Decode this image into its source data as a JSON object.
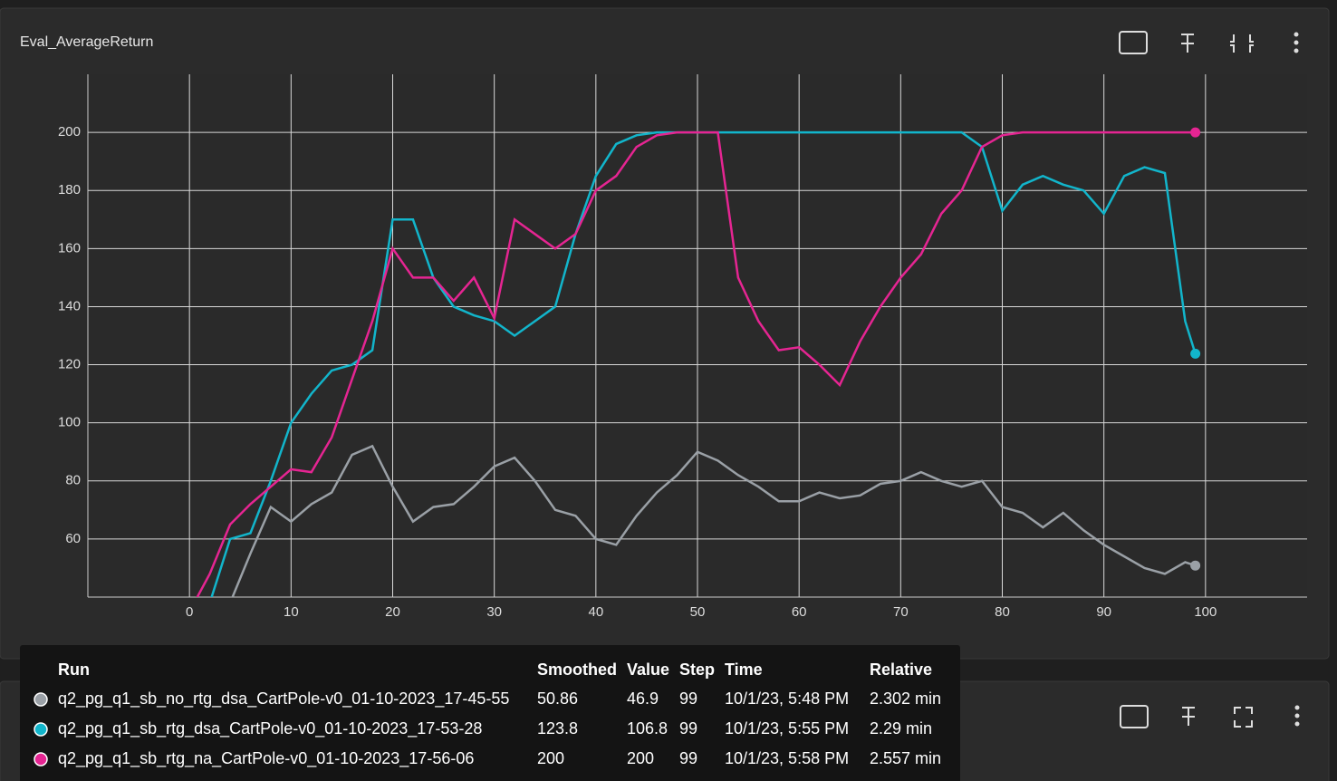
{
  "chart_data": {
    "type": "line",
    "title": "Eval_AverageReturn",
    "x": [
      0,
      2,
      4,
      6,
      8,
      10,
      12,
      14,
      16,
      18,
      20,
      22,
      24,
      26,
      28,
      30,
      32,
      34,
      36,
      38,
      40,
      42,
      44,
      46,
      48,
      50,
      52,
      54,
      56,
      58,
      60,
      62,
      64,
      66,
      68,
      70,
      72,
      74,
      76,
      78,
      80,
      82,
      84,
      86,
      88,
      90,
      92,
      94,
      96,
      98,
      99
    ],
    "series": [
      {
        "name": "q2_pg_q1_sb_no_rtg_dsa_CartPole-v0_01-10-2023_17-45-55",
        "color": "#9aa0a6",
        "values": [
          35,
          36,
          38,
          55,
          71,
          66,
          72,
          76,
          89,
          92,
          78,
          66,
          71,
          72,
          78,
          85,
          88,
          80,
          70,
          68,
          60,
          58,
          68,
          76,
          82,
          90,
          87,
          82,
          78,
          73,
          73,
          76,
          74,
          75,
          79,
          80,
          83,
          80,
          78,
          80,
          71,
          69,
          64,
          69,
          63,
          58,
          54,
          50,
          48,
          52,
          50.86
        ]
      },
      {
        "name": "q2_pg_q1_sb_rtg_dsa_CartPole-v0_01-10-2023_17-53-28",
        "color": "#12b5cb",
        "values": [
          30,
          38,
          60,
          62,
          80,
          100,
          110,
          118,
          120,
          125,
          170,
          170,
          150,
          140,
          137,
          135,
          130,
          135,
          140,
          165,
          185,
          196,
          199,
          200,
          200,
          200,
          200,
          200,
          200,
          200,
          200,
          200,
          200,
          200,
          200,
          200,
          200,
          200,
          200,
          195,
          173,
          182,
          185,
          182,
          180,
          172,
          185,
          188,
          186,
          135,
          123.8
        ]
      },
      {
        "name": "q2_pg_q1_sb_rtg_na_CartPole-v0_01-10-2023_17-56-06",
        "color": "#e52592",
        "values": [
          35,
          48,
          65,
          72,
          78,
          84,
          83,
          95,
          115,
          135,
          160,
          150,
          150,
          142,
          150,
          136,
          170,
          165,
          160,
          165,
          180,
          185,
          195,
          199,
          200,
          200,
          200,
          150,
          135,
          125,
          126,
          120,
          113,
          128,
          140,
          150,
          158,
          172,
          180,
          195,
          199,
          200,
          200,
          200,
          200,
          200,
          200,
          200,
          200,
          200,
          200
        ]
      }
    ],
    "xlim": [
      -10,
      110
    ],
    "ylim": [
      40,
      220
    ],
    "xticks": [
      0,
      10,
      20,
      30,
      40,
      50,
      60,
      70,
      80,
      90,
      100
    ],
    "yticks": [
      60,
      80,
      100,
      120,
      140,
      160,
      180,
      200
    ],
    "grid": true
  },
  "tooltip": {
    "columns": [
      "Run",
      "Smoothed",
      "Value",
      "Step",
      "Time",
      "Relative"
    ],
    "rows": [
      [
        "q2_pg_q1_sb_no_rtg_dsa_CartPole-v0_01-10-2023_17-45-55",
        "50.86",
        "46.9",
        "99",
        "10/1/23, 5:48 PM",
        "2.302 min"
      ],
      [
        "q2_pg_q1_sb_rtg_dsa_CartPole-v0_01-10-2023_17-53-28",
        "123.8",
        "106.8",
        "99",
        "10/1/23, 5:55 PM",
        "2.29 min"
      ],
      [
        "q2_pg_q1_sb_rtg_na_CartPole-v0_01-10-2023_17-56-06",
        "200",
        "200",
        "99",
        "10/1/23, 5:58 PM",
        "2.557 min"
      ]
    ]
  }
}
